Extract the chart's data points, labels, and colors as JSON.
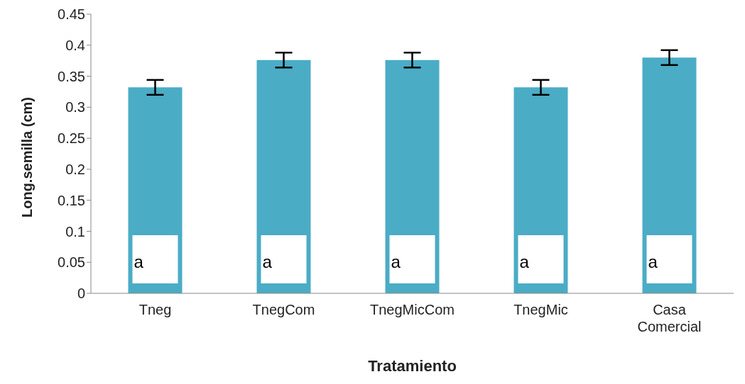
{
  "chart_data": {
    "type": "bar",
    "xlabel": "Tratamiento",
    "ylabel": "Long.semilla (cm)",
    "categories": [
      "Tneg",
      "TnegCom",
      "TnegMicCom",
      "TnegMic",
      "Casa Comercial"
    ],
    "values": [
      0.332,
      0.376,
      0.376,
      0.332,
      0.38
    ],
    "errors": [
      0.012,
      0.012,
      0.012,
      0.012,
      0.012
    ],
    "color": "#4bacc6",
    "ylim": [
      0,
      0.45
    ],
    "yticks": [
      0,
      0.05,
      0.1,
      0.15,
      0.2,
      0.25,
      0.3,
      0.35,
      0.4,
      0.45
    ],
    "grid": false,
    "legend": false,
    "annotations": [
      "a",
      "a",
      "a",
      "a",
      "a"
    ]
  }
}
